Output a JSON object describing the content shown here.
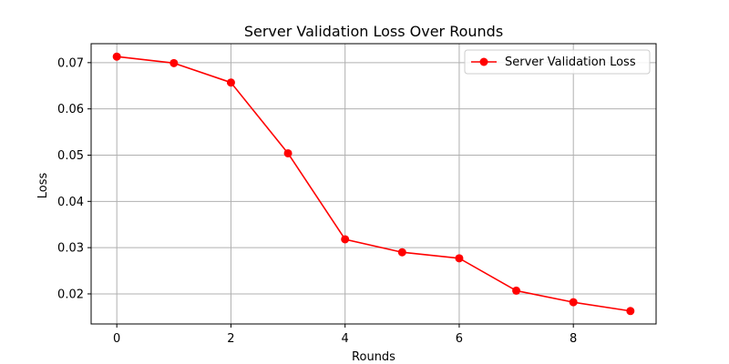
{
  "chart_data": {
    "type": "line",
    "title": "Server Validation Loss Over Rounds",
    "xlabel": "Rounds",
    "ylabel": "Loss",
    "xlim": [
      -0.45,
      9.45
    ],
    "ylim": [
      0.0135,
      0.0741
    ],
    "xticks": [
      0,
      2,
      4,
      6,
      8
    ],
    "xtick_labels": [
      "0",
      "2",
      "4",
      "6",
      "8"
    ],
    "yticks": [
      0.02,
      0.03,
      0.04,
      0.05,
      0.06,
      0.07
    ],
    "ytick_labels": [
      "0.02",
      "0.03",
      "0.04",
      "0.05",
      "0.06",
      "0.07"
    ],
    "grid": true,
    "legend_position": "upper right",
    "x": [
      0,
      1,
      2,
      3,
      4,
      5,
      6,
      7,
      8,
      9
    ],
    "series": [
      {
        "name": "Server Validation Loss",
        "color": "#ff0000",
        "marker": "circle",
        "values": [
          0.0713,
          0.0699,
          0.0657,
          0.0504,
          0.0318,
          0.029,
          0.0277,
          0.0207,
          0.0182,
          0.0163
        ]
      }
    ]
  }
}
